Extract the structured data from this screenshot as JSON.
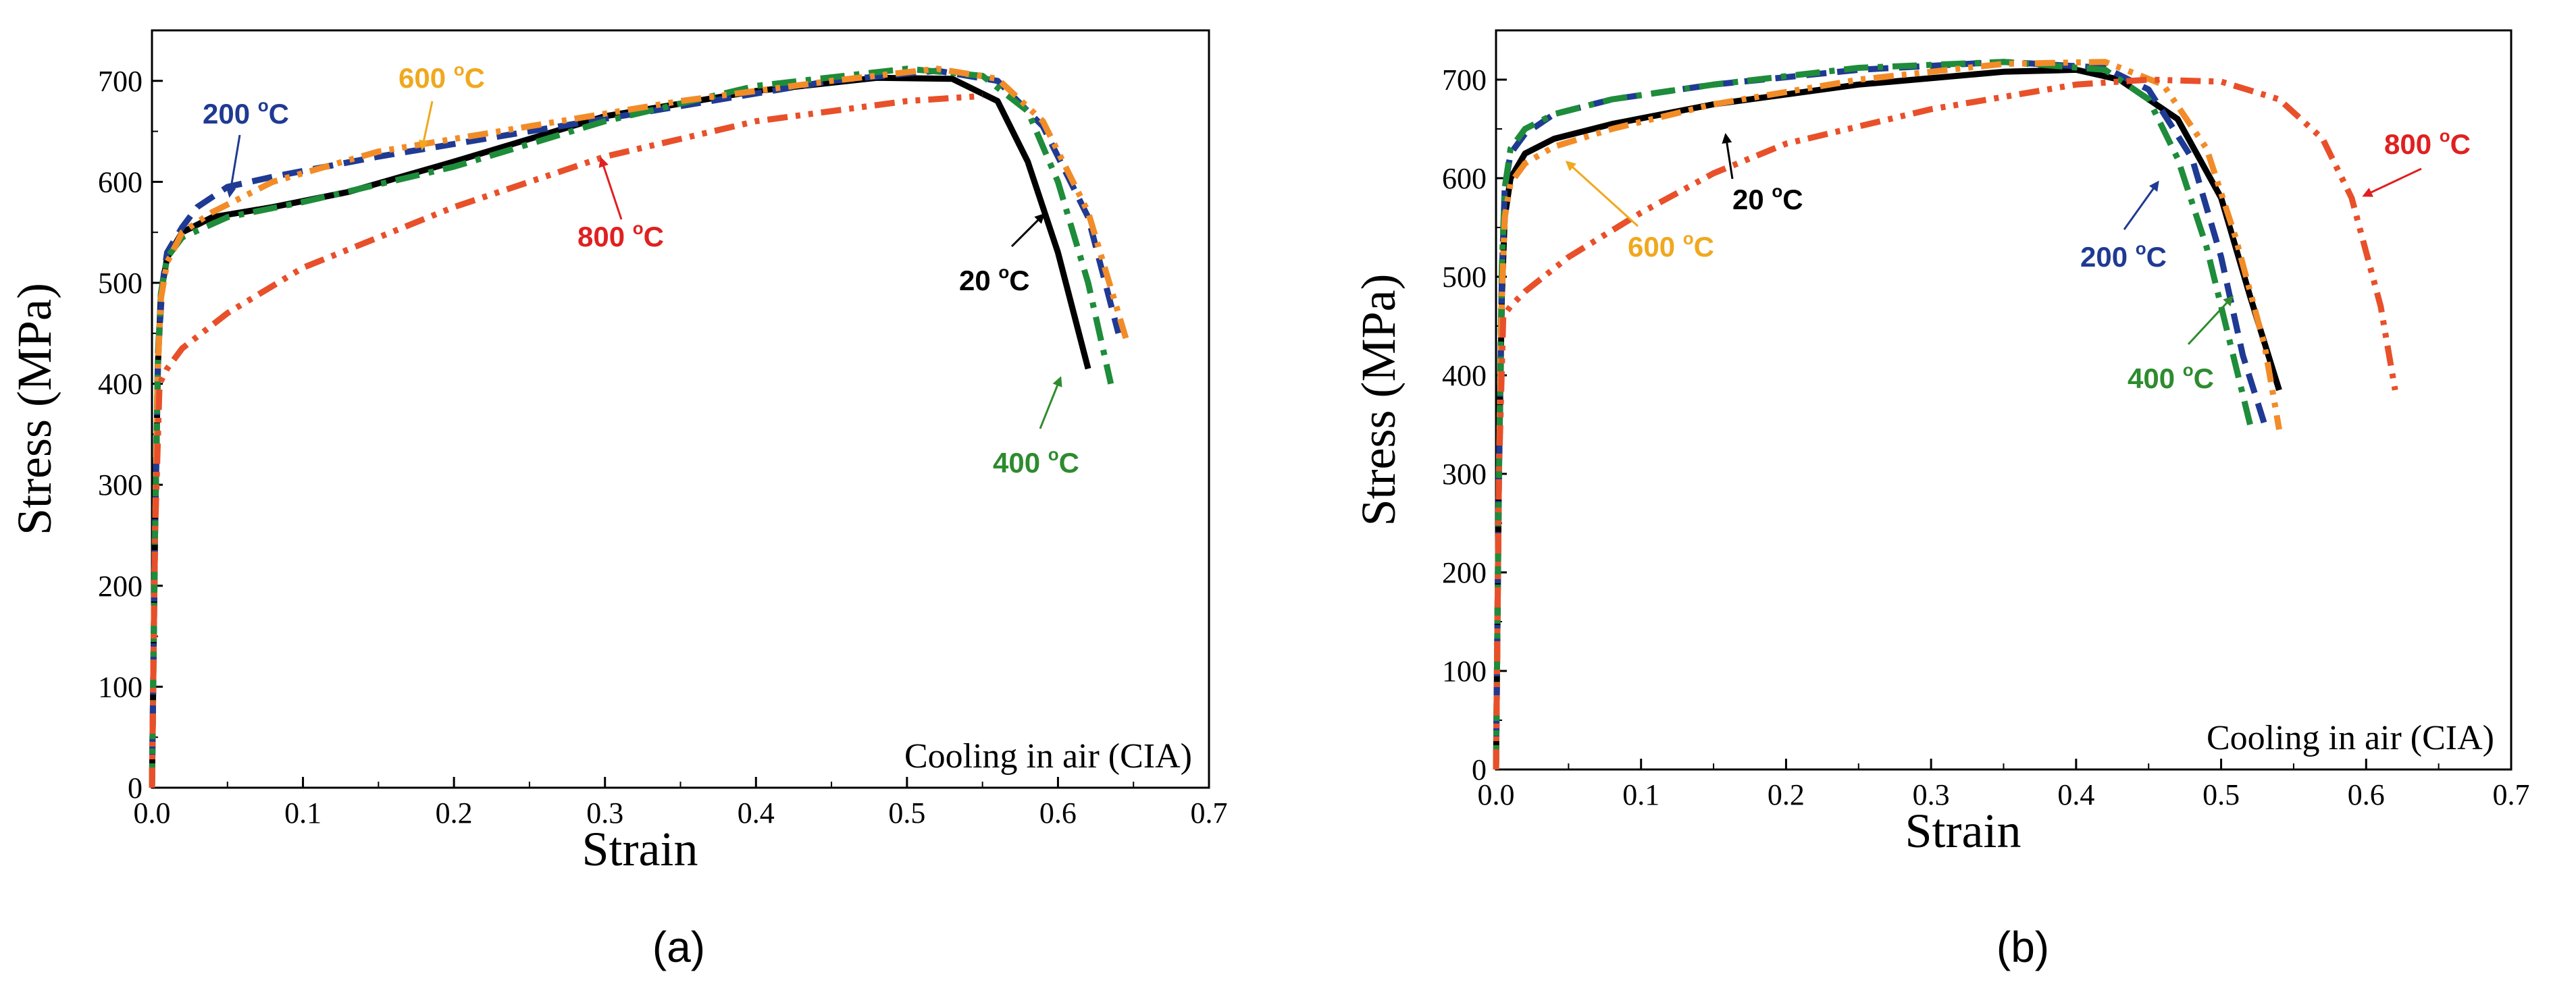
{
  "chart_data": [
    {
      "panel": "(a)",
      "type": "line",
      "xlabel": "Strain",
      "ylabel": "Stress (MPa)",
      "xlim": [
        0,
        0.7
      ],
      "ylim": [
        0,
        750
      ],
      "xticks": [
        "0.0",
        "0.1",
        "0.2",
        "0.3",
        "0.4",
        "0.5",
        "0.6",
        "0.7"
      ],
      "yticks": [
        "0",
        "100",
        "200",
        "300",
        "400",
        "500",
        "600",
        "700"
      ],
      "annotation": "Cooling in air (CIA)",
      "series": [
        {
          "name": "20 oC",
          "temp": "20",
          "color": "#000000",
          "dash": "solid",
          "x": [
            0,
            0.002,
            0.004,
            0.006,
            0.01,
            0.02,
            0.04,
            0.08,
            0.13,
            0.2,
            0.3,
            0.4,
            0.48,
            0.53,
            0.56,
            0.58,
            0.6,
            0.62
          ],
          "y": [
            0,
            250,
            420,
            490,
            525,
            550,
            565,
            575,
            590,
            620,
            665,
            690,
            703,
            702,
            680,
            620,
            530,
            415
          ]
        },
        {
          "name": "200 oC",
          "temp": "200",
          "color": "#1F3A93",
          "dash": "dash",
          "x": [
            0,
            0.002,
            0.004,
            0.007,
            0.01,
            0.02,
            0.03,
            0.05,
            0.08,
            0.15,
            0.25,
            0.35,
            0.45,
            0.52,
            0.56,
            0.59,
            0.62,
            0.64
          ],
          "y": [
            0,
            250,
            430,
            500,
            530,
            555,
            575,
            595,
            605,
            625,
            650,
            675,
            700,
            710,
            700,
            655,
            565,
            450
          ]
        },
        {
          "name": "400 oC",
          "temp": "400",
          "color": "#1E8C3A",
          "dash": "dashdot",
          "x": [
            0,
            0.002,
            0.004,
            0.006,
            0.01,
            0.02,
            0.05,
            0.1,
            0.2,
            0.3,
            0.4,
            0.5,
            0.55,
            0.58,
            0.6,
            0.62,
            0.635
          ],
          "y": [
            0,
            250,
            430,
            490,
            525,
            545,
            565,
            580,
            615,
            660,
            695,
            712,
            705,
            670,
            600,
            500,
            400
          ]
        },
        {
          "name": "600 oC",
          "temp": "600",
          "color": "#F28C28",
          "dash": "dashdotdot",
          "x": [
            0,
            0.002,
            0.004,
            0.006,
            0.01,
            0.02,
            0.04,
            0.08,
            0.15,
            0.25,
            0.35,
            0.45,
            0.52,
            0.56,
            0.59,
            0.62,
            0.645
          ],
          "y": [
            0,
            250,
            420,
            485,
            520,
            550,
            570,
            600,
            630,
            655,
            680,
            700,
            712,
            702,
            660,
            570,
            445
          ]
        },
        {
          "name": "800 oC",
          "temp": "800",
          "color": "#E8502A",
          "dash": "dashdotdot",
          "x": [
            0,
            0.002,
            0.005,
            0.01,
            0.02,
            0.05,
            0.1,
            0.15,
            0.2,
            0.3,
            0.4,
            0.5,
            0.55
          ],
          "y": [
            0,
            250,
            400,
            415,
            435,
            470,
            515,
            545,
            575,
            625,
            660,
            680,
            685
          ]
        }
      ],
      "labels": [
        {
          "series": "200 oC",
          "temp": "200",
          "color": "#1F3A93"
        },
        {
          "series": "600 oC",
          "temp": "600",
          "color": "#F0A81E"
        },
        {
          "series": "800 oC",
          "temp": "800",
          "color": "#E02020"
        },
        {
          "series": "20 oC",
          "temp": "20",
          "color": "#000000"
        },
        {
          "series": "400 oC",
          "temp": "400",
          "color": "#2E8B2E"
        }
      ]
    },
    {
      "panel": "(b)",
      "type": "line",
      "xlabel": "Strain",
      "ylabel": "Stress (MPa)",
      "xlim": [
        0,
        0.7
      ],
      "ylim": [
        0,
        750
      ],
      "xticks": [
        "0.0",
        "0.1",
        "0.2",
        "0.3",
        "0.4",
        "0.5",
        "0.6",
        "0.7"
      ],
      "yticks": [
        "0",
        "100",
        "200",
        "300",
        "400",
        "500",
        "600",
        "700"
      ],
      "annotation": "Cooling in air (CIA)",
      "series": [
        {
          "name": "20 oC",
          "temp": "20",
          "color": "#000000",
          "dash": "solid",
          "x": [
            0,
            0.002,
            0.004,
            0.006,
            0.01,
            0.02,
            0.04,
            0.08,
            0.15,
            0.25,
            0.35,
            0.4,
            0.43,
            0.47,
            0.5,
            0.52,
            0.54
          ],
          "y": [
            0,
            300,
            480,
            560,
            600,
            625,
            640,
            655,
            675,
            695,
            708,
            710,
            700,
            660,
            580,
            480,
            385
          ]
        },
        {
          "name": "200 oC",
          "temp": "200",
          "color": "#1F3A93",
          "dash": "dash",
          "x": [
            0,
            0.002,
            0.004,
            0.006,
            0.01,
            0.02,
            0.04,
            0.08,
            0.15,
            0.25,
            0.35,
            0.42,
            0.45,
            0.48,
            0.5,
            0.515,
            0.53
          ],
          "y": [
            0,
            300,
            500,
            590,
            625,
            645,
            665,
            680,
            695,
            710,
            718,
            712,
            690,
            620,
            520,
            420,
            350
          ]
        },
        {
          "name": "400 oC",
          "temp": "400",
          "color": "#1E8C3A",
          "dash": "dashdot",
          "x": [
            0,
            0.002,
            0.004,
            0.006,
            0.01,
            0.02,
            0.04,
            0.08,
            0.15,
            0.25,
            0.35,
            0.42,
            0.45,
            0.47,
            0.49,
            0.505,
            0.52
          ],
          "y": [
            0,
            300,
            510,
            590,
            630,
            650,
            665,
            680,
            695,
            712,
            718,
            710,
            680,
            620,
            530,
            440,
            350
          ]
        },
        {
          "name": "600 oC",
          "temp": "600",
          "color": "#F28C28",
          "dash": "dashdotdot",
          "x": [
            0,
            0.002,
            0.004,
            0.006,
            0.01,
            0.02,
            0.04,
            0.08,
            0.15,
            0.25,
            0.35,
            0.42,
            0.46,
            0.49,
            0.51,
            0.53,
            0.54
          ],
          "y": [
            0,
            300,
            480,
            560,
            595,
            615,
            632,
            650,
            675,
            700,
            716,
            718,
            695,
            630,
            540,
            430,
            345
          ]
        },
        {
          "name": "800 oC",
          "temp": "800",
          "color": "#E8502A",
          "dash": "dashdotdot",
          "x": [
            0,
            0.002,
            0.005,
            0.01,
            0.02,
            0.05,
            0.1,
            0.15,
            0.2,
            0.3,
            0.4,
            0.45,
            0.5,
            0.54,
            0.57,
            0.59,
            0.61,
            0.62
          ],
          "y": [
            0,
            300,
            460,
            470,
            485,
            520,
            565,
            605,
            635,
            670,
            695,
            700,
            698,
            680,
            640,
            580,
            470,
            385
          ]
        }
      ],
      "labels": [
        {
          "series": "800 oC",
          "temp": "800",
          "color": "#E02020"
        },
        {
          "series": "20 oC",
          "temp": "20",
          "color": "#000000"
        },
        {
          "series": "600 oC",
          "temp": "600",
          "color": "#F0A81E"
        },
        {
          "series": "200 oC",
          "temp": "200",
          "color": "#1F3A93"
        },
        {
          "series": "400 oC",
          "temp": "400",
          "color": "#2E8B2E"
        }
      ]
    }
  ],
  "panel_captions": [
    "(a)",
    "(b)"
  ],
  "unit_superscript": "o",
  "unit_letter": "C"
}
